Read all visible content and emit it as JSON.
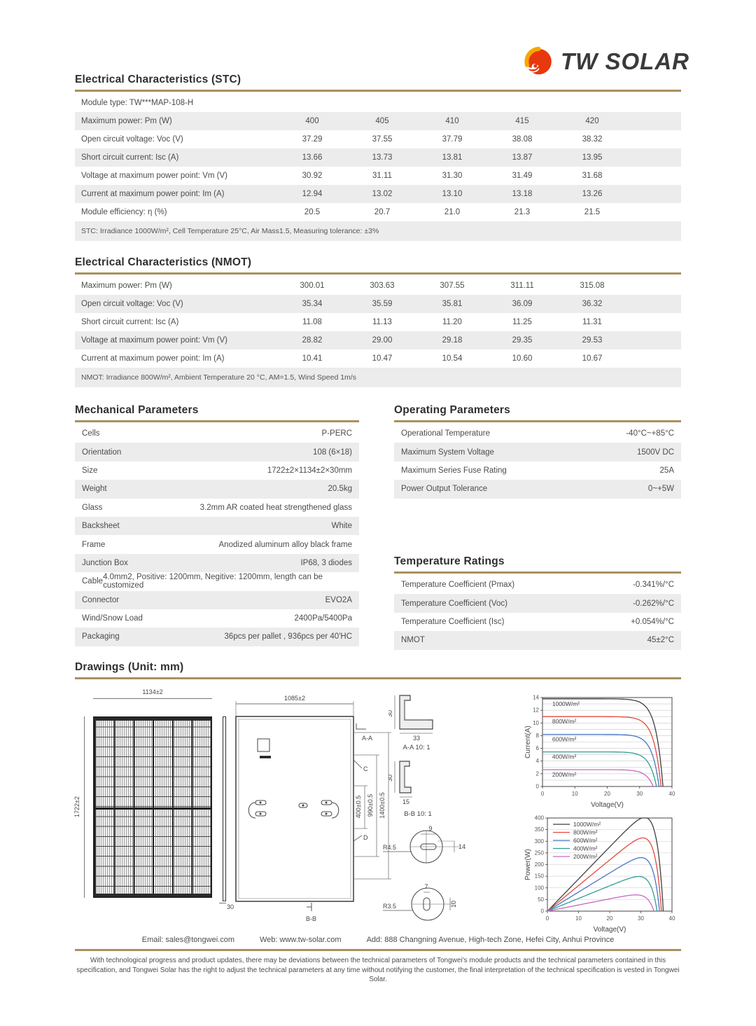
{
  "logo": {
    "text": "TW SOLAR",
    "icon": "flame-sun-icon",
    "accent_red": "#e8380d",
    "accent_yellow": "#f6a800"
  },
  "theme": {
    "rule_color": "#a8905f",
    "stripe_color": "#ececec"
  },
  "sections": {
    "stc": {
      "title": "Electrical Characteristics (STC)",
      "module_type": "Module type: TW***MAP-108-H",
      "rows": [
        {
          "label": "Maximum power: Pm (W)",
          "values": [
            "400",
            "405",
            "410",
            "415",
            "420"
          ]
        },
        {
          "label": "Open circuit voltage: Voc (V)",
          "values": [
            "37.29",
            "37.55",
            "37.79",
            "38.08",
            "38.32"
          ]
        },
        {
          "label": "Short circuit current: Isc (A)",
          "values": [
            "13.66",
            "13.73",
            "13.81",
            "13.87",
            "13.95"
          ]
        },
        {
          "label": "Voltage at maximum power point: Vm (V)",
          "values": [
            "30.92",
            "31.11",
            "31.30",
            "31.49",
            "31.68"
          ]
        },
        {
          "label": "Current at maximum power point: Im (A)",
          "values": [
            "12.94",
            "13.02",
            "13.10",
            "13.18",
            "13.26"
          ]
        },
        {
          "label": "Module efficiency: η (%)",
          "values": [
            "20.5",
            "20.7",
            "21.0",
            "21.3",
            "21.5"
          ]
        }
      ],
      "note": "STC: Irradiance 1000W/m²,  Cell Temperature 25°C,  Air Mass1.5,  Measuring tolerance:  ±3%"
    },
    "nmot": {
      "title": "Electrical Characteristics (NMOT)",
      "rows": [
        {
          "label": "Maximum power: Pm (W)",
          "values": [
            "300.01",
            "303.63",
            "307.55",
            "311.11",
            "315.08"
          ]
        },
        {
          "label": "Open circuit voltage: Voc (V)",
          "values": [
            "35.34",
            "35.59",
            "35.81",
            "36.09",
            "36.32"
          ]
        },
        {
          "label": "Short circuit current: Isc (A)",
          "values": [
            "11.08",
            "11.13",
            "11.20",
            "11.25",
            "11.31"
          ]
        },
        {
          "label": "Voltage at maximum power point: Vm (V)",
          "values": [
            "28.82",
            "29.00",
            "29.18",
            "29.35",
            "29.53"
          ]
        },
        {
          "label": "Current at maximum power point: Im (A)",
          "values": [
            "10.41",
            "10.47",
            "10.54",
            "10.60",
            "10.67"
          ]
        }
      ],
      "note": "NMOT: Irradiance 800W/m², Ambient Temperature 20 °C, AM=1.5, Wind Speed 1m/s"
    },
    "mechanical": {
      "title": "Mechanical Parameters",
      "rows": [
        {
          "label": "Cells",
          "value": "P-PERC"
        },
        {
          "label": "Orientation",
          "value": "108 (6×18)"
        },
        {
          "label": "Size",
          "value": "1722±2×1134±2×30mm"
        },
        {
          "label": "Weight",
          "value": "20.5kg"
        },
        {
          "label": "Glass",
          "value": "3.2mm AR coated heat strengthened glass"
        },
        {
          "label": "Backsheet",
          "value": "White"
        },
        {
          "label": "Frame",
          "value": "Anodized aluminum alloy black frame"
        },
        {
          "label": "Junction Box",
          "value": "IP68, 3 diodes"
        },
        {
          "label": "Cable",
          "value": "4.0mm2, Positive: 1200mm, Negitive: 1200mm, length can be customized"
        },
        {
          "label": "Connector",
          "value": "EVO2A"
        },
        {
          "label": "Wind/Snow Load",
          "value": "2400Pa/5400Pa"
        },
        {
          "label": "Packaging",
          "value": "36pcs per pallet , 936pcs per 40'HC"
        }
      ]
    },
    "operating": {
      "title": "Operating Parameters",
      "rows": [
        {
          "label": "Operational Temperature",
          "value": "-40°C~+85°C"
        },
        {
          "label": "Maximum System Voltage",
          "value": "1500V DC"
        },
        {
          "label": "Maximum Series Fuse Rating",
          "value": "25A"
        },
        {
          "label": "Power Output Tolerance",
          "value": "0~+5W"
        }
      ]
    },
    "temperature": {
      "title": "Temperature Ratings",
      "rows": [
        {
          "label": "Temperature Coefficient (Pmax)",
          "value": "-0.341%/°C"
        },
        {
          "label": "Temperature Coefficient (Voc)",
          "value": "-0.262%/°C"
        },
        {
          "label": "Temperature Coefficient (Isc)",
          "value": "+0.054%/°C"
        },
        {
          "label": "NMOT",
          "value": "45±2°C"
        }
      ]
    },
    "drawings": {
      "title": "Drawings (Unit: mm)",
      "front": {
        "width_dim": "1134±2",
        "height_dim": "1722±2"
      },
      "side": {
        "thickness_dim": "30"
      },
      "back": {
        "width_dim": "1085±2",
        "dim_inner": "400±0.5",
        "dim_mid": "990±0.5",
        "dim_outer": "1400±0.5",
        "label_aa": "A-A",
        "label_c": "C",
        "label_d": "D",
        "label_bb": "B-B"
      },
      "section_aa": {
        "caption": "A-A 10: 1",
        "height_dim": "30",
        "width_dim": "33"
      },
      "section_bb": {
        "caption": "B-B 10: 1",
        "height_dim": "30",
        "width_dim": "15"
      },
      "mounting_hole": {
        "label": "R4.5",
        "width_dim": "9",
        "height_dim": "14"
      },
      "grounding_hole": {
        "label": "R3.5",
        "width_dim": "7",
        "height_dim": "10"
      }
    }
  },
  "footer": {
    "email": "Email: sales@tongwei.com",
    "web": "Web: www.tw-solar.com",
    "address": "Add: 888 Changning Avenue, High-tech Zone, Hefei City, Anhui Province",
    "disclaimer": "With technological progress and product updates, there may be deviations between the technical parameters of Tongwei's module products and the technical parameters contained in this specification, and Tongwei Solar has the right to adjust the technical parameters at any time without notifying the customer, the final interpretation of the technical specification is vested in Tongwei Solar."
  },
  "chart_data": [
    {
      "type": "line",
      "mode": "iv",
      "xlabel": "Voltage(V)",
      "ylabel": "Current(A)",
      "xlim": [
        0,
        40
      ],
      "ylim": [
        0,
        14
      ],
      "xticks": [
        0,
        10,
        20,
        30,
        40
      ],
      "yticks": [
        0,
        2,
        4,
        6,
        8,
        10,
        12,
        14
      ],
      "grid_step_y": 1,
      "grid": true,
      "legend": false,
      "series": [
        {
          "label": "1000W/m²",
          "color": "#3f3f3f",
          "isc": 13.8,
          "voc": 37.2
        },
        {
          "label": "800W/m²",
          "color": "#e04a3f",
          "isc": 11.0,
          "voc": 36.6
        },
        {
          "label": "600W/m²",
          "color": "#4a76c4",
          "isc": 8.2,
          "voc": 36.0
        },
        {
          "label": "400W/m²",
          "color": "#2f9e96",
          "isc": 5.45,
          "voc": 35.2
        },
        {
          "label": "200W/m²",
          "color": "#c469c4",
          "isc": 2.65,
          "voc": 34.2
        }
      ]
    },
    {
      "type": "line",
      "mode": "power",
      "xlabel": "Voltage(V)",
      "ylabel": "Power(W)",
      "xlim": [
        0,
        40
      ],
      "ylim": [
        0,
        400
      ],
      "xticks": [
        0,
        10,
        20,
        30,
        40
      ],
      "yticks": [
        0,
        50,
        100,
        150,
        200,
        250,
        300,
        350,
        400
      ],
      "grid_step_y": 50,
      "grid": true,
      "legend": true,
      "series": [
        {
          "label": "1000W/m²",
          "color": "#3f3f3f",
          "isc": 13.8,
          "voc": 37.2,
          "pmax_w": 400,
          "vmpp": 31
        },
        {
          "label": "800W/m²",
          "color": "#e04a3f",
          "isc": 11.0,
          "voc": 36.6,
          "pmax_w": 325,
          "vmpp": 31
        },
        {
          "label": "600W/m²",
          "color": "#4a76c4",
          "isc": 8.2,
          "voc": 36.0,
          "pmax_w": 245,
          "vmpp": 30.5
        },
        {
          "label": "400W/m²",
          "color": "#2f9e96",
          "isc": 5.45,
          "voc": 35.2,
          "pmax_w": 160,
          "vmpp": 30
        },
        {
          "label": "200W/m²",
          "color": "#c469c4",
          "isc": 2.65,
          "voc": 34.2,
          "pmax_w": 78,
          "vmpp": 29.5
        }
      ]
    }
  ]
}
